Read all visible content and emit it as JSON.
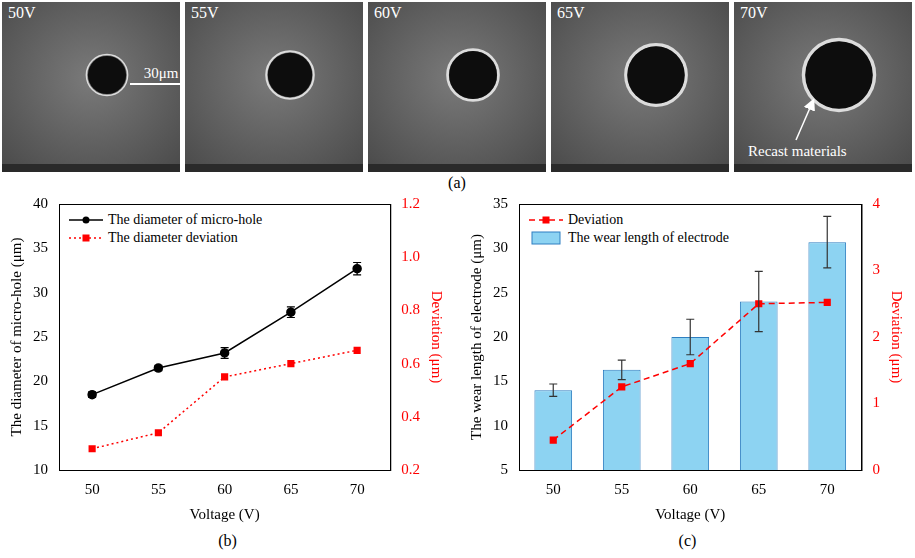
{
  "images": {
    "panel_label": "(a)",
    "panels": [
      "50V",
      "55V",
      "60V",
      "65V",
      "70V"
    ],
    "scale_bar": {
      "value": 30,
      "label": "30μm"
    },
    "annotation": "Recast materials"
  },
  "chart_data": [
    {
      "type": "line",
      "panel_label": "(b)",
      "categories": [
        "50",
        "55",
        "60",
        "65",
        "70"
      ],
      "x_label": "Voltage (V)",
      "y_label": "The diameter of micro-hole (μm)",
      "y2_label": "Deviation (μm)",
      "ylim": [
        10,
        40
      ],
      "yticks": [
        10,
        15,
        20,
        25,
        30,
        35,
        40
      ],
      "y2lim": [
        0.2,
        1.2
      ],
      "y2ticks": [
        0.2,
        0.4,
        0.6,
        0.8,
        {
          "value": 1,
          "label": "1.0"
        },
        1.2
      ],
      "legend": "upper left",
      "grid": false,
      "series": [
        {
          "name": "The diameter of micro-hole",
          "type": "line",
          "color": "#000000",
          "marker": "circle",
          "line_style": "solid",
          "values": [
            18.5,
            21.5,
            23.2,
            27.8,
            32.7
          ],
          "errors": [
            0.3,
            0.3,
            0.6,
            0.6,
            0.7
          ]
        },
        {
          "name": "The diameter deviation",
          "type": "line",
          "color": "#ff0000",
          "marker": "square",
          "line_style": "dotted",
          "axis": "y2",
          "values": [
            0.28,
            0.34,
            0.55,
            0.6,
            0.65
          ]
        }
      ]
    },
    {
      "type": "bar",
      "panel_label": "(c)",
      "categories": [
        "50",
        "55",
        "60",
        "65",
        "70"
      ],
      "x_label": "Voltage (V)",
      "y_label": "The wear length of electrode (μm)",
      "y2_label": "Deviation (μm)",
      "ylim": [
        5,
        35
      ],
      "yticks": [
        5,
        10,
        15,
        20,
        25,
        30,
        35
      ],
      "y2lim": [
        0,
        4
      ],
      "y2ticks": [
        0,
        1,
        2,
        3,
        4
      ],
      "legend": "upper left",
      "grid": false,
      "series": [
        {
          "name": "Deviation",
          "type": "line",
          "color": "#ff0000",
          "marker": "square",
          "line_style": "dashed",
          "axis": "y2",
          "values": [
            0.45,
            1.25,
            1.6,
            2.5,
            2.52
          ]
        },
        {
          "name": "The wear length of electrode",
          "type": "bar",
          "color": "#8dd3f2",
          "values": [
            14,
            16.3,
            20,
            24,
            30.7
          ],
          "errors": [
            0.7,
            1.1,
            2.0,
            3.4,
            2.9
          ]
        }
      ]
    }
  ]
}
